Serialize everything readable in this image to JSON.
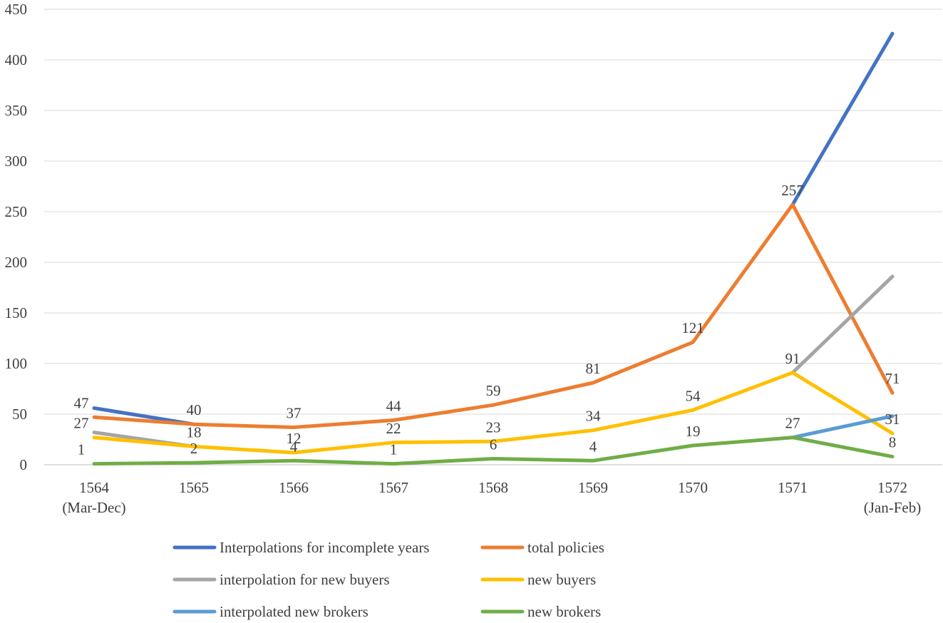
{
  "chart_data": {
    "type": "line",
    "title": "",
    "xlabel": "",
    "ylabel": "",
    "ylim": [
      0,
      450
    ],
    "yticks": [
      0,
      50,
      100,
      150,
      200,
      250,
      300,
      350,
      400,
      450
    ],
    "grid": true,
    "legend_position": "bottom",
    "categories": [
      [
        "1564",
        "(Mar-Dec)"
      ],
      [
        "1565"
      ],
      [
        "1566"
      ],
      [
        "1567"
      ],
      [
        "1568"
      ],
      [
        "1569"
      ],
      [
        "1570"
      ],
      [
        "1571"
      ],
      [
        "1572",
        "(Jan-Feb)"
      ]
    ],
    "series": [
      {
        "name": "Interpolations for incomplete years",
        "color": "#4472C4",
        "values": [
          56,
          40,
          null,
          null,
          null,
          null,
          null,
          257,
          426
        ],
        "labels": [
          null,
          null,
          null,
          null,
          null,
          null,
          null,
          null,
          null
        ]
      },
      {
        "name": "total policies",
        "color": "#ED7D31",
        "values": [
          47,
          40,
          37,
          44,
          59,
          81,
          121,
          257,
          71
        ],
        "labels": [
          "47",
          "40",
          "37",
          "44",
          "59",
          "81",
          "121",
          "257",
          "71"
        ]
      },
      {
        "name": "interpolation for new buyers",
        "color": "#A5A5A5",
        "values": [
          32,
          18,
          null,
          null,
          null,
          null,
          null,
          91,
          186
        ],
        "labels": [
          null,
          null,
          null,
          null,
          null,
          null,
          null,
          null,
          null
        ]
      },
      {
        "name": "new buyers",
        "color": "#FFC000",
        "values": [
          27,
          18,
          12,
          22,
          23,
          34,
          54,
          91,
          31
        ],
        "labels": [
          "27",
          "18",
          "12",
          "22",
          "23",
          "34",
          "54",
          "91",
          "31"
        ]
      },
      {
        "name": "interpolated new brokers",
        "color": "#5B9BD5",
        "values": [
          null,
          null,
          null,
          null,
          null,
          null,
          null,
          27,
          48
        ],
        "labels": [
          null,
          null,
          null,
          null,
          null,
          null,
          null,
          null,
          null
        ]
      },
      {
        "name": "new brokers",
        "color": "#70AD47",
        "values": [
          1,
          2,
          4,
          1,
          6,
          4,
          19,
          27,
          8
        ],
        "labels": [
          "1",
          "2",
          "4",
          "1",
          "6",
          "4",
          "19",
          "27",
          "8"
        ]
      }
    ]
  }
}
